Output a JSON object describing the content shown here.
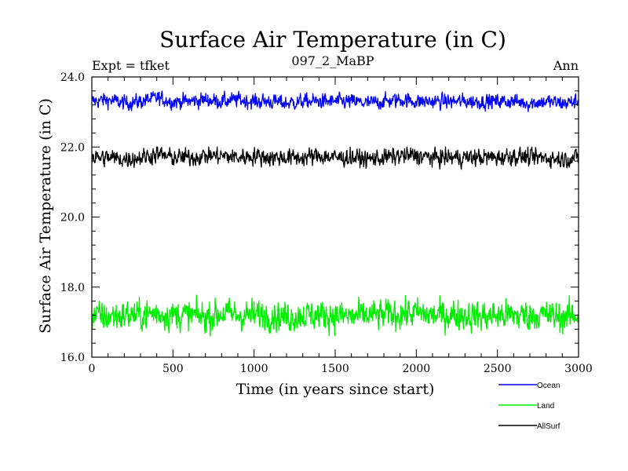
{
  "chart_data": {
    "type": "line",
    "title": "Surface Air Temperature (in C)",
    "subtitle": "097_2_MaBP",
    "left_note": "Expt = tfket",
    "right_note": "Ann",
    "xlabel": "Time (in years since start)",
    "ylabel": "Surface Air Temperature (in C)",
    "xlim": [
      0,
      3000
    ],
    "ylim": [
      16,
      24
    ],
    "x_ticks": [
      "0",
      "500",
      "1000",
      "1500",
      "2000",
      "2500",
      "3000"
    ],
    "y_ticks": [
      "16.0",
      "18.0",
      "20.0",
      "22.0",
      "24.0"
    ],
    "legend_position": "bottom-right",
    "grid": false,
    "series": [
      {
        "name": "Ocean",
        "color": "#0000ff",
        "summary": {
          "mean": 23.3,
          "min": 23.0,
          "max": 23.6
        },
        "x": [
          0,
          100,
          200,
          300,
          400,
          500,
          600,
          700,
          800,
          900,
          1000,
          1100,
          1200,
          1300,
          1400,
          1500,
          1600,
          1700,
          1800,
          1900,
          2000,
          2100,
          2200,
          2300,
          2400,
          2500,
          2600,
          2700,
          2800,
          2900,
          3000
        ],
        "y": [
          23.3,
          23.35,
          23.25,
          23.3,
          23.4,
          23.3,
          23.3,
          23.35,
          23.3,
          23.35,
          23.3,
          23.3,
          23.25,
          23.3,
          23.3,
          23.3,
          23.3,
          23.25,
          23.3,
          23.35,
          23.3,
          23.3,
          23.3,
          23.3,
          23.3,
          23.3,
          23.3,
          23.25,
          23.3,
          23.25,
          23.3
        ]
      },
      {
        "name": "Land",
        "color": "#00ee00",
        "summary": {
          "mean": 17.2,
          "min": 16.6,
          "max": 17.8
        },
        "x": [
          0,
          100,
          200,
          300,
          400,
          500,
          600,
          700,
          800,
          900,
          1000,
          1100,
          1200,
          1300,
          1400,
          1500,
          1600,
          1700,
          1800,
          1900,
          2000,
          2100,
          2200,
          2300,
          2400,
          2500,
          2600,
          2700,
          2800,
          2900,
          3000
        ],
        "y": [
          17.2,
          17.15,
          17.2,
          17.2,
          17.25,
          17.2,
          17.2,
          17.15,
          17.25,
          17.2,
          17.2,
          17.2,
          17.15,
          17.2,
          17.2,
          17.2,
          17.15,
          17.2,
          17.2,
          17.25,
          17.25,
          17.2,
          17.2,
          17.2,
          17.15,
          17.2,
          17.2,
          17.2,
          17.2,
          17.15,
          17.2
        ]
      },
      {
        "name": "AllSurf",
        "color": "#000000",
        "summary": {
          "mean": 21.7,
          "min": 21.3,
          "max": 22.0
        },
        "x": [
          0,
          100,
          200,
          300,
          400,
          500,
          600,
          700,
          800,
          900,
          1000,
          1100,
          1200,
          1300,
          1400,
          1500,
          1600,
          1700,
          1800,
          1900,
          2000,
          2100,
          2200,
          2300,
          2400,
          2500,
          2600,
          2700,
          2800,
          2900,
          3000
        ],
        "y": [
          21.7,
          21.7,
          21.65,
          21.7,
          21.8,
          21.7,
          21.7,
          21.75,
          21.75,
          21.7,
          21.75,
          21.7,
          21.7,
          21.7,
          21.75,
          21.7,
          21.7,
          21.65,
          21.7,
          21.75,
          21.75,
          21.7,
          21.7,
          21.7,
          21.7,
          21.7,
          21.75,
          21.7,
          21.7,
          21.65,
          21.7
        ]
      }
    ]
  }
}
